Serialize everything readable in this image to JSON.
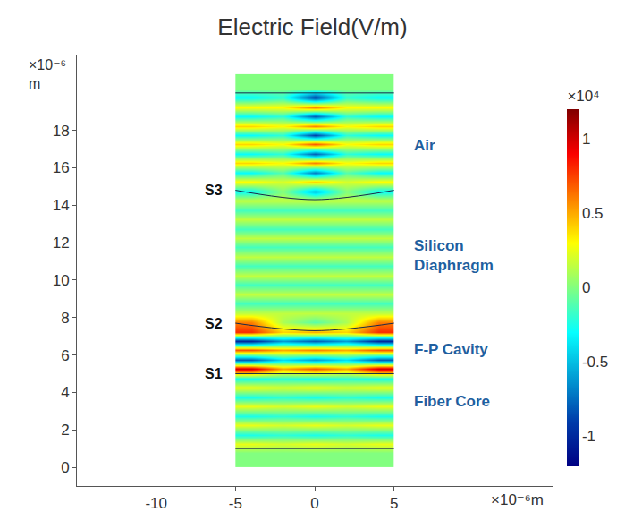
{
  "chart_data": {
    "type": "heatmap",
    "title": "Electric Field(V/m)",
    "xlabel": "×10⁻⁶m",
    "ylabel": [
      "×10⁻⁶",
      "m"
    ],
    "xlim": [
      -15,
      15
    ],
    "ylim": [
      -1,
      22
    ],
    "xticks": [
      -10,
      -5,
      0,
      5
    ],
    "yticks": [
      0,
      2,
      4,
      6,
      8,
      10,
      12,
      14,
      16,
      18
    ],
    "grid": false,
    "colorbar": {
      "label": "×10⁴",
      "range": [
        -1.2,
        1.2
      ],
      "ticks": [
        -1,
        -0.5,
        0,
        0.5,
        1
      ]
    },
    "x": [
      -4,
      -2,
      0,
      2,
      4
    ],
    "y": [
      0.25,
      0.75,
      1.25,
      1.75,
      2.25,
      2.75,
      3.25,
      3.75,
      4.25,
      4.75,
      5.25,
      5.75,
      6.25,
      6.75,
      7.25,
      7.75,
      8.25,
      8.75,
      9.25,
      9.75,
      10.25,
      10.75,
      11.25,
      11.75,
      12.25,
      12.75,
      13.25,
      13.75,
      14.25,
      14.75,
      15.25,
      15.75,
      16.25,
      16.75,
      17.25,
      17.75,
      18.25,
      18.75,
      19.25,
      19.75,
      20.25,
      20.75
    ],
    "z": [
      [
        0,
        0,
        0,
        0,
        0
      ],
      [
        0,
        0,
        0,
        0,
        0
      ],
      [
        0.25,
        0.2,
        0.25,
        0.2,
        0.25
      ],
      [
        -0.25,
        -0.2,
        -0.25,
        -0.2,
        -0.25
      ],
      [
        0.25,
        0.2,
        0.25,
        0.2,
        0.25
      ],
      [
        -0.25,
        -0.2,
        -0.25,
        -0.2,
        -0.25
      ],
      [
        0.25,
        0.2,
        0.25,
        0.2,
        0.25
      ],
      [
        -0.25,
        -0.2,
        -0.25,
        -0.2,
        -0.25
      ],
      [
        0.25,
        0.2,
        0.25,
        0.2,
        0.25
      ],
      [
        -0.25,
        -0.2,
        -0.25,
        -0.2,
        -0.25
      ],
      [
        1.0,
        0.5,
        0.7,
        0.5,
        1.0
      ],
      [
        -0.8,
        -0.4,
        -0.6,
        -0.4,
        -0.8
      ],
      [
        0.7,
        0.5,
        0.6,
        0.5,
        0.7
      ],
      [
        -1.0,
        -0.6,
        -0.8,
        -0.6,
        -1.0
      ],
      [
        0.8,
        0.4,
        0.5,
        0.4,
        0.8
      ],
      [
        0.6,
        0.1,
        -0.1,
        0.1,
        0.6
      ],
      [
        0.15,
        0.15,
        0.15,
        0.15,
        0.15
      ],
      [
        -0.15,
        -0.15,
        -0.15,
        -0.15,
        -0.15
      ],
      [
        0.15,
        0.15,
        0.15,
        0.15,
        0.15
      ],
      [
        -0.15,
        -0.15,
        -0.15,
        -0.15,
        -0.15
      ],
      [
        0.15,
        0.15,
        0.15,
        0.15,
        0.15
      ],
      [
        -0.15,
        -0.15,
        -0.15,
        -0.15,
        -0.15
      ],
      [
        0.15,
        0.15,
        0.15,
        0.15,
        0.15
      ],
      [
        -0.15,
        -0.15,
        -0.15,
        -0.15,
        -0.15
      ],
      [
        0.15,
        0.15,
        0.15,
        0.15,
        0.15
      ],
      [
        -0.15,
        -0.15,
        -0.15,
        -0.15,
        -0.15
      ],
      [
        0.15,
        0.15,
        0.15,
        0.15,
        0.15
      ],
      [
        -0.15,
        -0.15,
        -0.15,
        -0.15,
        -0.15
      ],
      [
        0.15,
        0.15,
        0.15,
        0.15,
        0.15
      ],
      [
        -0.3,
        0,
        -0.5,
        0,
        -0.3
      ],
      [
        0.3,
        0.2,
        0.4,
        0.2,
        0.3
      ],
      [
        -0.3,
        -0.1,
        -0.7,
        -0.1,
        -0.3
      ],
      [
        0.4,
        0.3,
        0.6,
        0.3,
        0.4
      ],
      [
        -0.3,
        -0.2,
        -0.8,
        -0.2,
        -0.3
      ],
      [
        0.4,
        0.3,
        0.7,
        0.3,
        0.4
      ],
      [
        -0.3,
        -0.2,
        -0.9,
        -0.2,
        -0.3
      ],
      [
        0.4,
        0.3,
        0.6,
        0.3,
        0.4
      ],
      [
        -0.3,
        -0.2,
        -0.8,
        -0.2,
        -0.3
      ],
      [
        0.3,
        0.3,
        0.6,
        0.3,
        0.3
      ],
      [
        -0.3,
        -0.2,
        -0.9,
        -0.2,
        -0.3
      ],
      [
        0,
        0,
        0,
        0,
        0
      ],
      [
        0,
        0,
        0,
        0,
        0
      ]
    ],
    "boundaries": [
      {
        "x": [
          -5,
          5
        ],
        "y": [
          1,
          1
        ]
      },
      {
        "name": "S1",
        "x": [
          -5,
          5
        ],
        "y": [
          5,
          5
        ]
      },
      {
        "name": "S2",
        "x": [
          -5,
          0,
          5
        ],
        "y": [
          7.7,
          7.3,
          7.7
        ]
      },
      {
        "name": "S3",
        "x": [
          -5,
          0,
          5
        ],
        "y": [
          14.8,
          14.3,
          14.8
        ]
      },
      {
        "x": [
          -5,
          5
        ],
        "y": [
          20,
          20
        ]
      }
    ],
    "regions": [
      {
        "label": "Air",
        "y": 17.2
      },
      {
        "label": "Silicon Diaphragm",
        "y": 11.3
      },
      {
        "label": "F-P Cavity",
        "y": 6.3
      },
      {
        "label": "Fiber Core",
        "y": 3.5
      }
    ]
  }
}
